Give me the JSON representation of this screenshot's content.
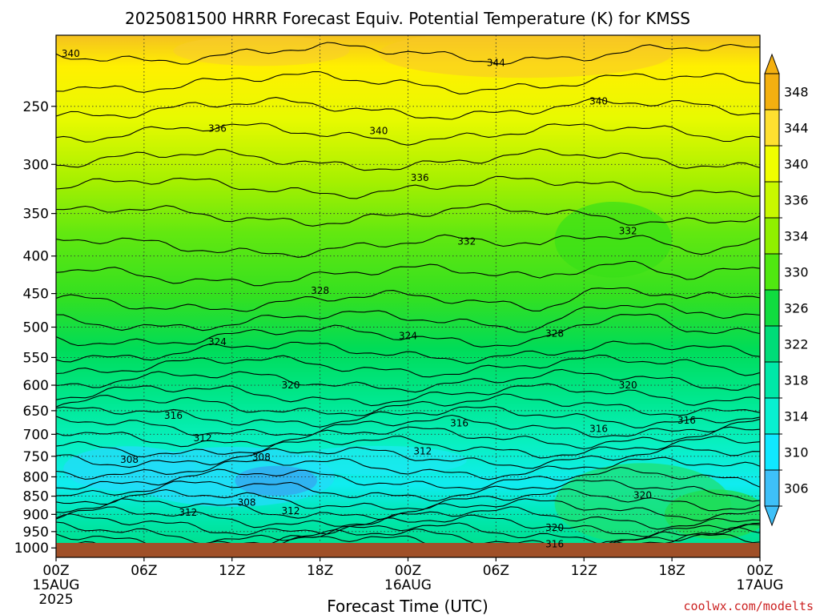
{
  "chart_data": {
    "type": "heatmap",
    "title": "2025081500 HRRR Forecast Equiv. Potential Temperature (K) for KMSS",
    "xlabel": "Forecast Time (UTC)",
    "ylabel": "",
    "x_ticks": [
      {
        "label": "00Z",
        "sub1": "15AUG",
        "sub2": "2025",
        "hour": 0
      },
      {
        "label": "06Z",
        "sub1": "",
        "sub2": "",
        "hour": 6
      },
      {
        "label": "12Z",
        "sub1": "",
        "sub2": "",
        "hour": 12
      },
      {
        "label": "18Z",
        "sub1": "",
        "sub2": "",
        "hour": 18
      },
      {
        "label": "00Z",
        "sub1": "16AUG",
        "sub2": "",
        "hour": 24
      },
      {
        "label": "06Z",
        "sub1": "",
        "sub2": "",
        "hour": 30
      },
      {
        "label": "12Z",
        "sub1": "",
        "sub2": "",
        "hour": 36
      },
      {
        "label": "18Z",
        "sub1": "",
        "sub2": "",
        "hour": 42
      },
      {
        "label": "00Z",
        "sub1": "17AUG",
        "sub2": "",
        "hour": 48
      }
    ],
    "xlim": [
      0,
      48
    ],
    "y_ticks": [
      250,
      300,
      350,
      400,
      450,
      500,
      550,
      600,
      650,
      700,
      750,
      800,
      850,
      900,
      950,
      1000
    ],
    "ylim": [
      200,
      1030
    ],
    "y_scale": "log-pressure",
    "grid": true,
    "colorbar": {
      "labels": [
        306,
        310,
        314,
        318,
        322,
        326,
        330,
        334,
        336,
        340,
        344,
        348
      ],
      "colors": [
        "#3ec0f8",
        "#10e8ff",
        "#08f0d0",
        "#00e8a8",
        "#00dc78",
        "#10dc40",
        "#50e810",
        "#90f000",
        "#c8f800",
        "#f0ff00",
        "#ffe030",
        "#f4b010"
      ],
      "extend": "both"
    },
    "contour_labels": [
      {
        "value": "340",
        "hour": 1.0,
        "p": 212
      },
      {
        "value": "344",
        "hour": 30.0,
        "p": 218
      },
      {
        "value": "340",
        "hour": 37.0,
        "p": 246
      },
      {
        "value": "336",
        "hour": 11.0,
        "p": 268
      },
      {
        "value": "340",
        "hour": 22.0,
        "p": 270
      },
      {
        "value": "336",
        "hour": 24.8,
        "p": 313
      },
      {
        "value": "332",
        "hour": 39.0,
        "p": 370
      },
      {
        "value": "332",
        "hour": 28.0,
        "p": 382
      },
      {
        "value": "328",
        "hour": 18.0,
        "p": 446
      },
      {
        "value": "328",
        "hour": 34.0,
        "p": 510
      },
      {
        "value": "324",
        "hour": 11.0,
        "p": 524
      },
      {
        "value": "324",
        "hour": 24.0,
        "p": 514
      },
      {
        "value": "320",
        "hour": 16.0,
        "p": 600
      },
      {
        "value": "320",
        "hour": 39.0,
        "p": 600
      },
      {
        "value": "316",
        "hour": 8.0,
        "p": 660
      },
      {
        "value": "316",
        "hour": 27.5,
        "p": 676
      },
      {
        "value": "316",
        "hour": 37.0,
        "p": 688
      },
      {
        "value": "316",
        "hour": 43.0,
        "p": 670
      },
      {
        "value": "312",
        "hour": 10.0,
        "p": 708
      },
      {
        "value": "312",
        "hour": 25.0,
        "p": 738
      },
      {
        "value": "308",
        "hour": 5.0,
        "p": 758
      },
      {
        "value": "308",
        "hour": 14.0,
        "p": 752
      },
      {
        "value": "308",
        "hour": 13.0,
        "p": 867
      },
      {
        "value": "312",
        "hour": 16.0,
        "p": 890
      },
      {
        "value": "312",
        "hour": 9.0,
        "p": 895
      },
      {
        "value": "320",
        "hour": 40.0,
        "p": 848
      },
      {
        "value": "320",
        "hour": 34.0,
        "p": 938
      },
      {
        "value": "316",
        "hour": 34.0,
        "p": 988
      }
    ]
  },
  "footer": {
    "credit": "coolwx.com/modelts"
  },
  "colors": {
    "ground": "#a05028",
    "contour": "#000000",
    "credit": "#cc2222"
  }
}
